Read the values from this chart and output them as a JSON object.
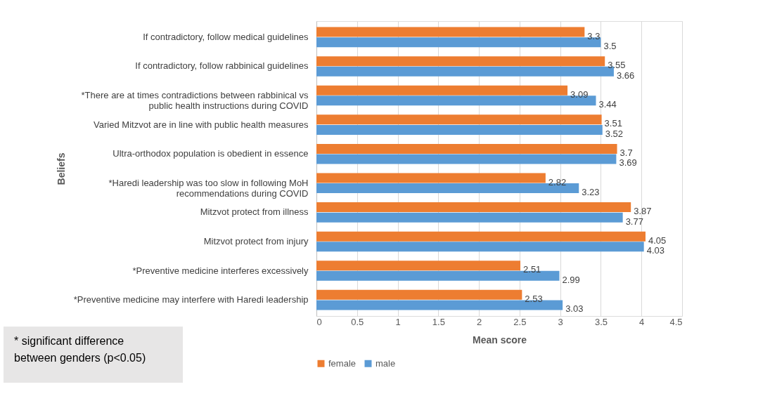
{
  "chart_data": {
    "type": "bar",
    "orientation": "horizontal",
    "xlabel": "Mean score",
    "ylabel": "Beliefs",
    "categories": [
      "If contradictory, follow medical guidelines",
      "If contradictory, follow rabbinical guidelines",
      "*There are at times contradictions between rabbinical vs public health instructions during COVID",
      "Varied Mitzvot are in line with public health measures",
      "Ultra-orthodox population is obedient in essence",
      "*Haredi leadership was too slow in following MoH recommendations during COVID",
      "Mitzvot protect from illness",
      "Mitzvot protect from injury",
      "*Preventive medicine  interferes excessively",
      "*Preventive medicine may interfere with Haredi leadership"
    ],
    "series": [
      {
        "name": "female",
        "color": "#ed7d31",
        "values": [
          3.3,
          3.55,
          3.09,
          3.51,
          3.7,
          2.82,
          3.87,
          4.05,
          2.51,
          2.53
        ]
      },
      {
        "name": "male",
        "color": "#5b9bd5",
        "values": [
          3.5,
          3.66,
          3.44,
          3.52,
          3.69,
          3.23,
          3.77,
          4.03,
          2.99,
          3.03
        ]
      }
    ],
    "xlim": [
      0,
      4.5
    ],
    "xticks": [
      0,
      0.5,
      1,
      1.5,
      2,
      2.5,
      3,
      3.5,
      4,
      4.5
    ],
    "grid": "x",
    "legend": "bottom",
    "data_labels": true,
    "annotations": [
      "* significant difference between genders (p<0.05)"
    ]
  }
}
